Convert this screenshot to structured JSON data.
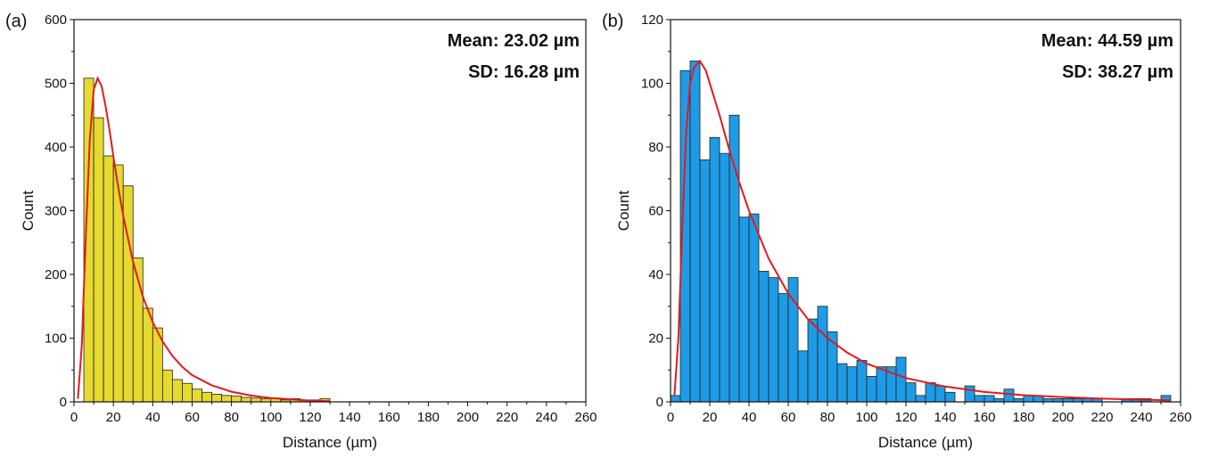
{
  "chart_data": [
    {
      "type": "bar",
      "panel_label": "(a)",
      "xlabel": "Distance (µm)",
      "ylabel": "Count",
      "xlim": [
        0,
        260
      ],
      "ylim": [
        0,
        600
      ],
      "xticks": [
        0,
        20,
        40,
        60,
        80,
        100,
        120,
        140,
        160,
        180,
        200,
        220,
        240,
        260
      ],
      "yticks": [
        0,
        100,
        200,
        300,
        400,
        500,
        600
      ],
      "bin_width": 5,
      "bin_start": 5,
      "bar_color": "#e6d930",
      "fit_color": "#e31a1c",
      "values": [
        508,
        446,
        386,
        372,
        339,
        226,
        147,
        116,
        50,
        35,
        29,
        20,
        15,
        12,
        10,
        9,
        7,
        6,
        5,
        6,
        3,
        5,
        3,
        3,
        5
      ],
      "fit_curve": {
        "x": [
          2,
          4,
          6,
          8,
          10,
          12,
          14,
          16,
          18,
          20,
          22,
          25,
          30,
          35,
          40,
          45,
          50,
          55,
          60,
          70,
          80,
          90,
          100,
          110,
          120,
          130
        ],
        "y": [
          5,
          90,
          260,
          410,
          490,
          508,
          496,
          465,
          428,
          385,
          345,
          292,
          220,
          165,
          125,
          95,
          72,
          55,
          42,
          26,
          16,
          10,
          6,
          4,
          2,
          1
        ]
      },
      "annotations": [
        "Mean: 23.02 µm",
        "SD: 16.28 µm"
      ]
    },
    {
      "type": "bar",
      "panel_label": "(b)",
      "xlabel": "Distance (µm)",
      "ylabel": "Count",
      "xlim": [
        0,
        260
      ],
      "ylim": [
        0,
        120
      ],
      "xticks": [
        0,
        20,
        40,
        60,
        80,
        100,
        120,
        140,
        160,
        180,
        200,
        220,
        240,
        260
      ],
      "yticks": [
        0,
        20,
        40,
        60,
        80,
        100,
        120
      ],
      "bin_width": 5,
      "bin_start": 0,
      "bar_color": "#1e9be6",
      "fit_color": "#e31a1c",
      "values": [
        2,
        104,
        107,
        76,
        83,
        78,
        90,
        58,
        59,
        41,
        39,
        34,
        39,
        16,
        26,
        30,
        22,
        12,
        11,
        13,
        8,
        11,
        11,
        14,
        6,
        2,
        6,
        5,
        3,
        0,
        5,
        2,
        2,
        1,
        4,
        1,
        2,
        2,
        1,
        1,
        1,
        1,
        1,
        1,
        0,
        0,
        1,
        1,
        1,
        0,
        2
      ],
      "fit_curve": {
        "x": [
          2,
          4,
          6,
          8,
          10,
          12,
          15,
          18,
          21,
          25,
          30,
          35,
          40,
          50,
          60,
          70,
          80,
          90,
          100,
          120,
          140,
          160,
          180,
          200,
          220,
          240,
          255
        ],
        "y": [
          2,
          20,
          55,
          85,
          100,
          105,
          107,
          104,
          98,
          90,
          79,
          69,
          60,
          45,
          34,
          26,
          20,
          15.5,
          12,
          7.5,
          4.8,
          3.1,
          2.1,
          1.5,
          1.0,
          0.7,
          0.5
        ]
      },
      "annotations": [
        "Mean: 44.59 µm",
        "SD: 38.27 µm"
      ]
    }
  ]
}
